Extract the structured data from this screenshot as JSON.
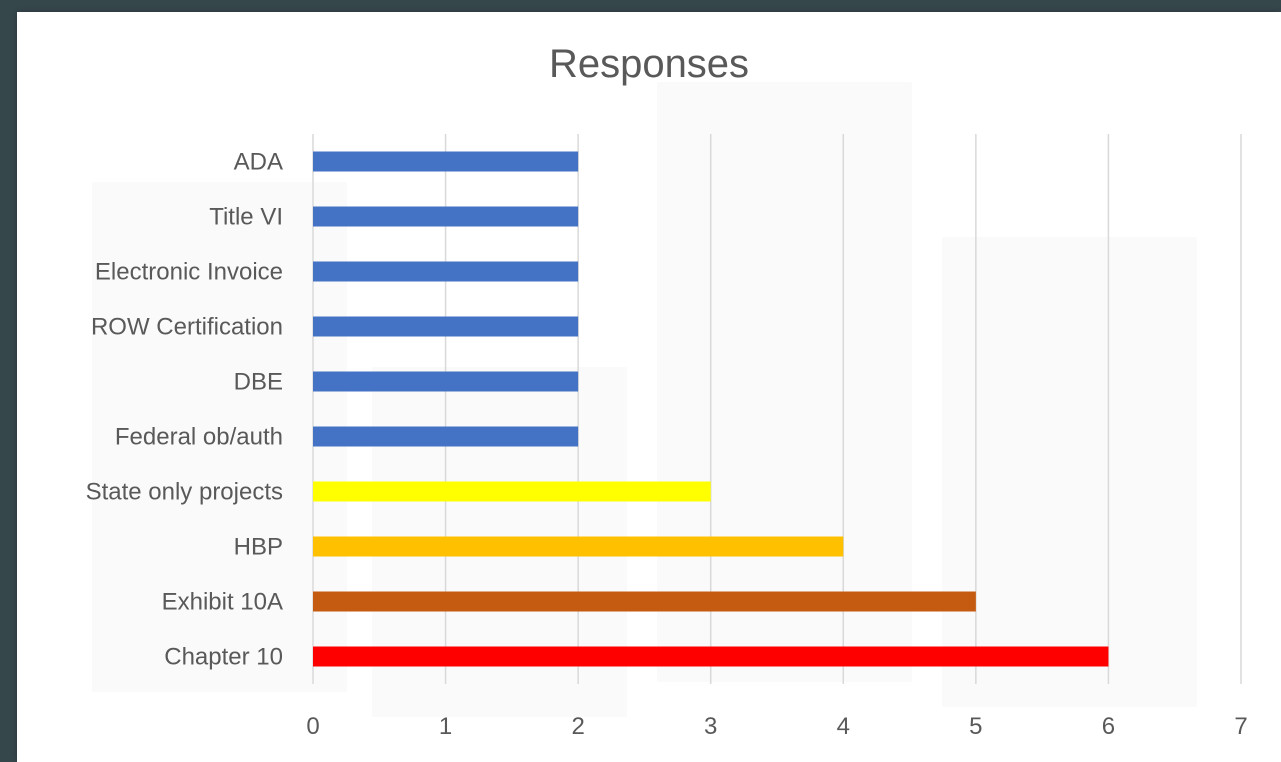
{
  "chart_data": {
    "type": "bar",
    "orientation": "horizontal",
    "title": "Responses",
    "xlabel": "",
    "ylabel": "",
    "categories": [
      "ADA",
      "Title VI",
      "Electronic Invoice",
      "ROW Certification",
      "DBE",
      "Federal ob/auth",
      "State only projects",
      "HBP",
      "Exhibit 10A",
      "Chapter 10"
    ],
    "values": [
      2,
      2,
      2,
      2,
      2,
      2,
      3,
      4,
      5,
      6
    ],
    "bar_colors": [
      "#4472c4",
      "#4472c4",
      "#4472c4",
      "#4472c4",
      "#4472c4",
      "#4472c4",
      "#ffff00",
      "#ffc000",
      "#c55a11",
      "#ff0000"
    ],
    "xlim": [
      0,
      7
    ],
    "x_ticks": [
      "0",
      "1",
      "2",
      "3",
      "4",
      "5",
      "6",
      "7"
    ],
    "grid": true,
    "legend": "none"
  }
}
